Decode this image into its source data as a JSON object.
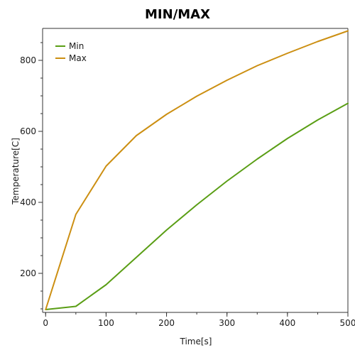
{
  "chart_data": {
    "type": "line",
    "title": "MIN/MAX",
    "xlabel": "Time[s]",
    "ylabel": "Temperature[C]",
    "xlim": [
      -5,
      500
    ],
    "ylim": [
      90,
      890
    ],
    "xticks": [
      0,
      100,
      200,
      300,
      400,
      500
    ],
    "yticks": [
      200,
      400,
      600,
      800
    ],
    "x_minor_step": 50,
    "y_minor_step": 50,
    "grid": false,
    "legend_position": "top-left",
    "series": [
      {
        "name": "Min",
        "color": "#5a9e15",
        "x": [
          0,
          50,
          100,
          150,
          200,
          250,
          300,
          350,
          400,
          450,
          500
        ],
        "y": [
          98,
          107,
          168,
          245,
          322,
          393,
          460,
          522,
          580,
          632,
          679
        ]
      },
      {
        "name": "Max",
        "color": "#cc8f12",
        "x": [
          0,
          50,
          100,
          150,
          200,
          250,
          300,
          350,
          400,
          450,
          500
        ],
        "y": [
          98,
          366,
          502,
          588,
          648,
          699,
          744,
          785,
          820,
          853,
          883
        ]
      }
    ]
  }
}
